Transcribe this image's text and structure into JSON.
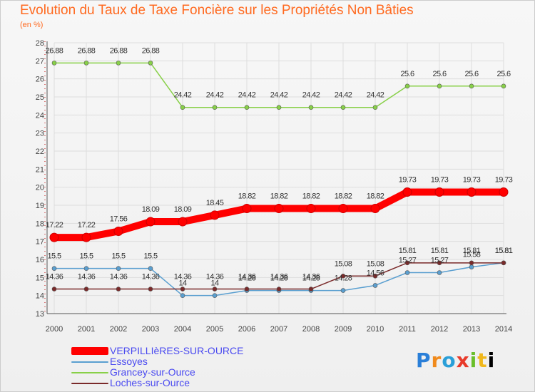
{
  "header": {
    "title": "Evolution du Taux de Taxe Foncière sur les Propriétés Non Bâties",
    "subtitle": "(en %)"
  },
  "logo": {
    "text": "Proxiti"
  },
  "chart_data": {
    "type": "line",
    "title": "Evolution du Taux de Taxe Foncière sur les Propriétés Non Bâties",
    "ylabel": "(en %)",
    "xlabel": "",
    "x": [
      "2000",
      "2001",
      "2002",
      "2003",
      "2004",
      "2005",
      "2006",
      "2007",
      "2008",
      "2009",
      "2010",
      "2011",
      "2012",
      "2013",
      "2014"
    ],
    "ylim": [
      13,
      28
    ],
    "yticks": [
      "13",
      "14",
      "15",
      "16",
      "17",
      "18",
      "19",
      "20",
      "21",
      "22",
      "23",
      "24",
      "25",
      "26",
      "27",
      "28"
    ],
    "grid": true,
    "legend_position": "bottom-left",
    "series": [
      {
        "name": "VERPILLIèRES-SUR-OURCE",
        "color": "#ff0000",
        "values": [
          17.22,
          17.22,
          17.56,
          18.09,
          18.09,
          18.45,
          18.82,
          18.82,
          18.82,
          18.82,
          18.82,
          19.73,
          19.73,
          19.73,
          19.73
        ],
        "labels": [
          "17.22",
          "17.22",
          "17.56",
          "18.09",
          "18.09",
          "18.45",
          "18.82",
          "18.82",
          "18.82",
          "18.82",
          "18.82",
          "19.73",
          "19.73",
          "19.73",
          "19.73"
        ]
      },
      {
        "name": "Essoyes",
        "color": "#5a9fd0",
        "values": [
          15.5,
          15.5,
          15.5,
          15.5,
          14.0,
          14.0,
          14.28,
          14.28,
          14.28,
          14.28,
          14.56,
          15.27,
          15.27,
          15.58,
          15.81
        ],
        "labels": [
          "15.5",
          "15.5",
          "15.5",
          "15.5",
          "14",
          "14",
          "14.28",
          "14.28",
          "14.28",
          "14.28",
          "14.56",
          "15.27",
          "15.27",
          "15.58",
          "15.81"
        ]
      },
      {
        "name": "Grancey-sur-Ource",
        "color": "#88d048",
        "values": [
          26.88,
          26.88,
          26.88,
          26.88,
          24.42,
          24.42,
          24.42,
          24.42,
          24.42,
          24.42,
          24.42,
          25.6,
          25.6,
          25.6,
          25.6
        ],
        "labels": [
          "26.88",
          "26.88",
          "26.88",
          "26.88",
          "24.42",
          "24.42",
          "24.42",
          "24.42",
          "24.42",
          "24.42",
          "24.42",
          "25.6",
          "25.6",
          "25.6",
          "25.6"
        ]
      },
      {
        "name": "Loches-sur-Ource",
        "color": "#7a2a2a",
        "values": [
          14.36,
          14.36,
          14.36,
          14.36,
          14.36,
          14.36,
          14.36,
          14.36,
          14.36,
          15.08,
          15.08,
          15.81,
          15.81,
          15.81,
          15.81
        ],
        "labels": [
          "14.36",
          "14.36",
          "14.36",
          "14.36",
          "14.36",
          "14.36",
          "14.36",
          "14.36",
          "14.36",
          "15.08",
          "15.08",
          "15.81",
          "15.81",
          "15.81",
          "15.81"
        ]
      }
    ]
  }
}
